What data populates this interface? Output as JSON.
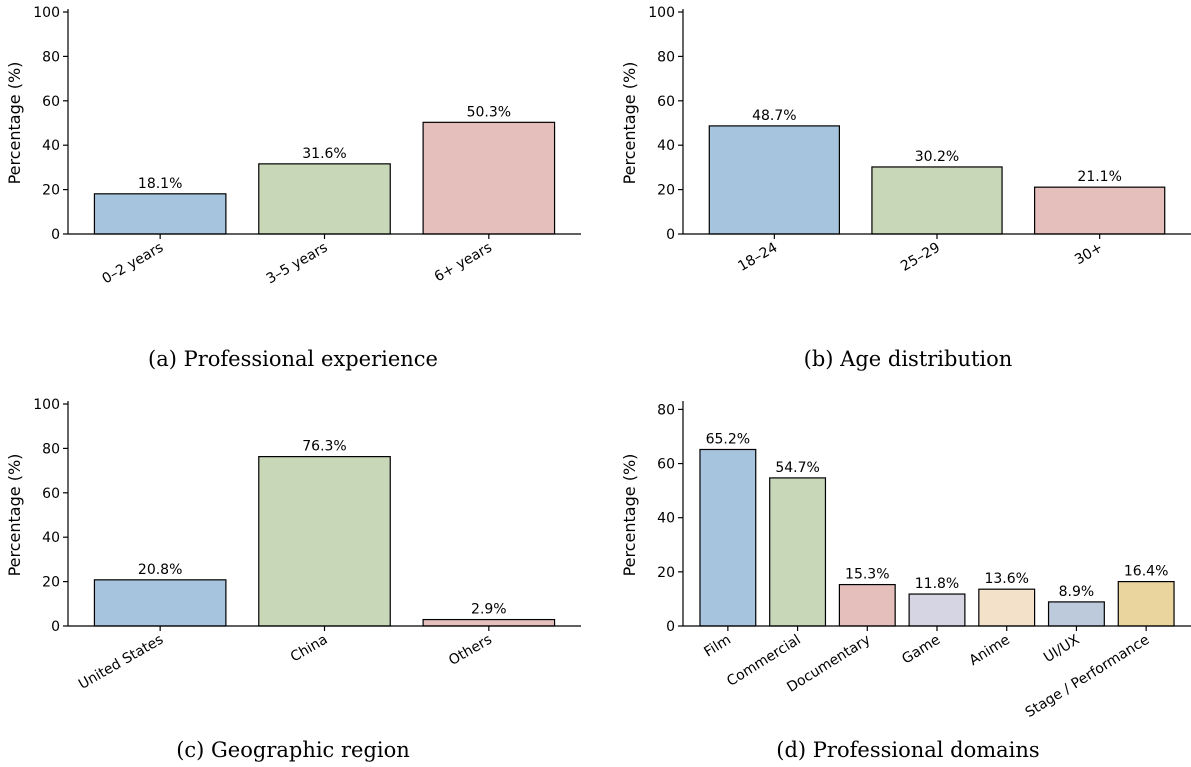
{
  "chart_data": [
    {
      "type": "bar",
      "caption": "(a) Professional experience",
      "ylabel": "Percentage (%)",
      "ylim": [
        0,
        100
      ],
      "yticks": [
        0,
        20,
        40,
        60,
        80,
        100
      ],
      "categories": [
        "0–2 years",
        "3–5 years",
        "6+ years"
      ],
      "values": [
        18.1,
        31.6,
        50.3
      ],
      "value_labels": [
        "18.1%",
        "31.6%",
        "50.3%"
      ],
      "colors": [
        "#a6c4dd",
        "#c9d7b9",
        "#e5bfbb"
      ]
    },
    {
      "type": "bar",
      "caption": "(b) Age distribution",
      "ylabel": "Percentage (%)",
      "ylim": [
        0,
        100
      ],
      "yticks": [
        0,
        20,
        40,
        60,
        80,
        100
      ],
      "categories": [
        "18–24",
        "25–29",
        "30+"
      ],
      "values": [
        48.7,
        30.2,
        21.1
      ],
      "value_labels": [
        "48.7%",
        "30.2%",
        "21.1%"
      ],
      "colors": [
        "#a6c4dd",
        "#c9d7b9",
        "#e5bfbb"
      ]
    },
    {
      "type": "bar",
      "caption": "(c) Geographic region",
      "ylabel": "Percentage (%)",
      "ylim": [
        0,
        100
      ],
      "yticks": [
        0,
        20,
        40,
        60,
        80,
        100
      ],
      "categories": [
        "United States",
        "China",
        "Others"
      ],
      "values": [
        20.8,
        76.3,
        2.9
      ],
      "value_labels": [
        "20.8%",
        "76.3%",
        "2.9%"
      ],
      "colors": [
        "#a6c4dd",
        "#c9d7b9",
        "#e5bfbb"
      ]
    },
    {
      "type": "bar",
      "caption": "(d) Professional domains",
      "ylabel": "Percentage (%)",
      "ylim": [
        0,
        82
      ],
      "yticks": [
        0,
        20,
        40,
        60,
        80
      ],
      "categories": [
        "Film",
        "Commercial",
        "Documentary",
        "Game",
        "Anime",
        "UI/UX",
        "Stage / Performance"
      ],
      "values": [
        65.2,
        54.7,
        15.3,
        11.8,
        13.6,
        8.9,
        16.4
      ],
      "value_labels": [
        "65.2%",
        "54.7%",
        "15.3%",
        "11.8%",
        "13.6%",
        "8.9%",
        "16.4%"
      ],
      "colors": [
        "#a6c4dd",
        "#c9d7b9",
        "#e5bfbb",
        "#d5d5e4",
        "#f3e1c9",
        "#bdcadb",
        "#ebd59f"
      ]
    }
  ]
}
